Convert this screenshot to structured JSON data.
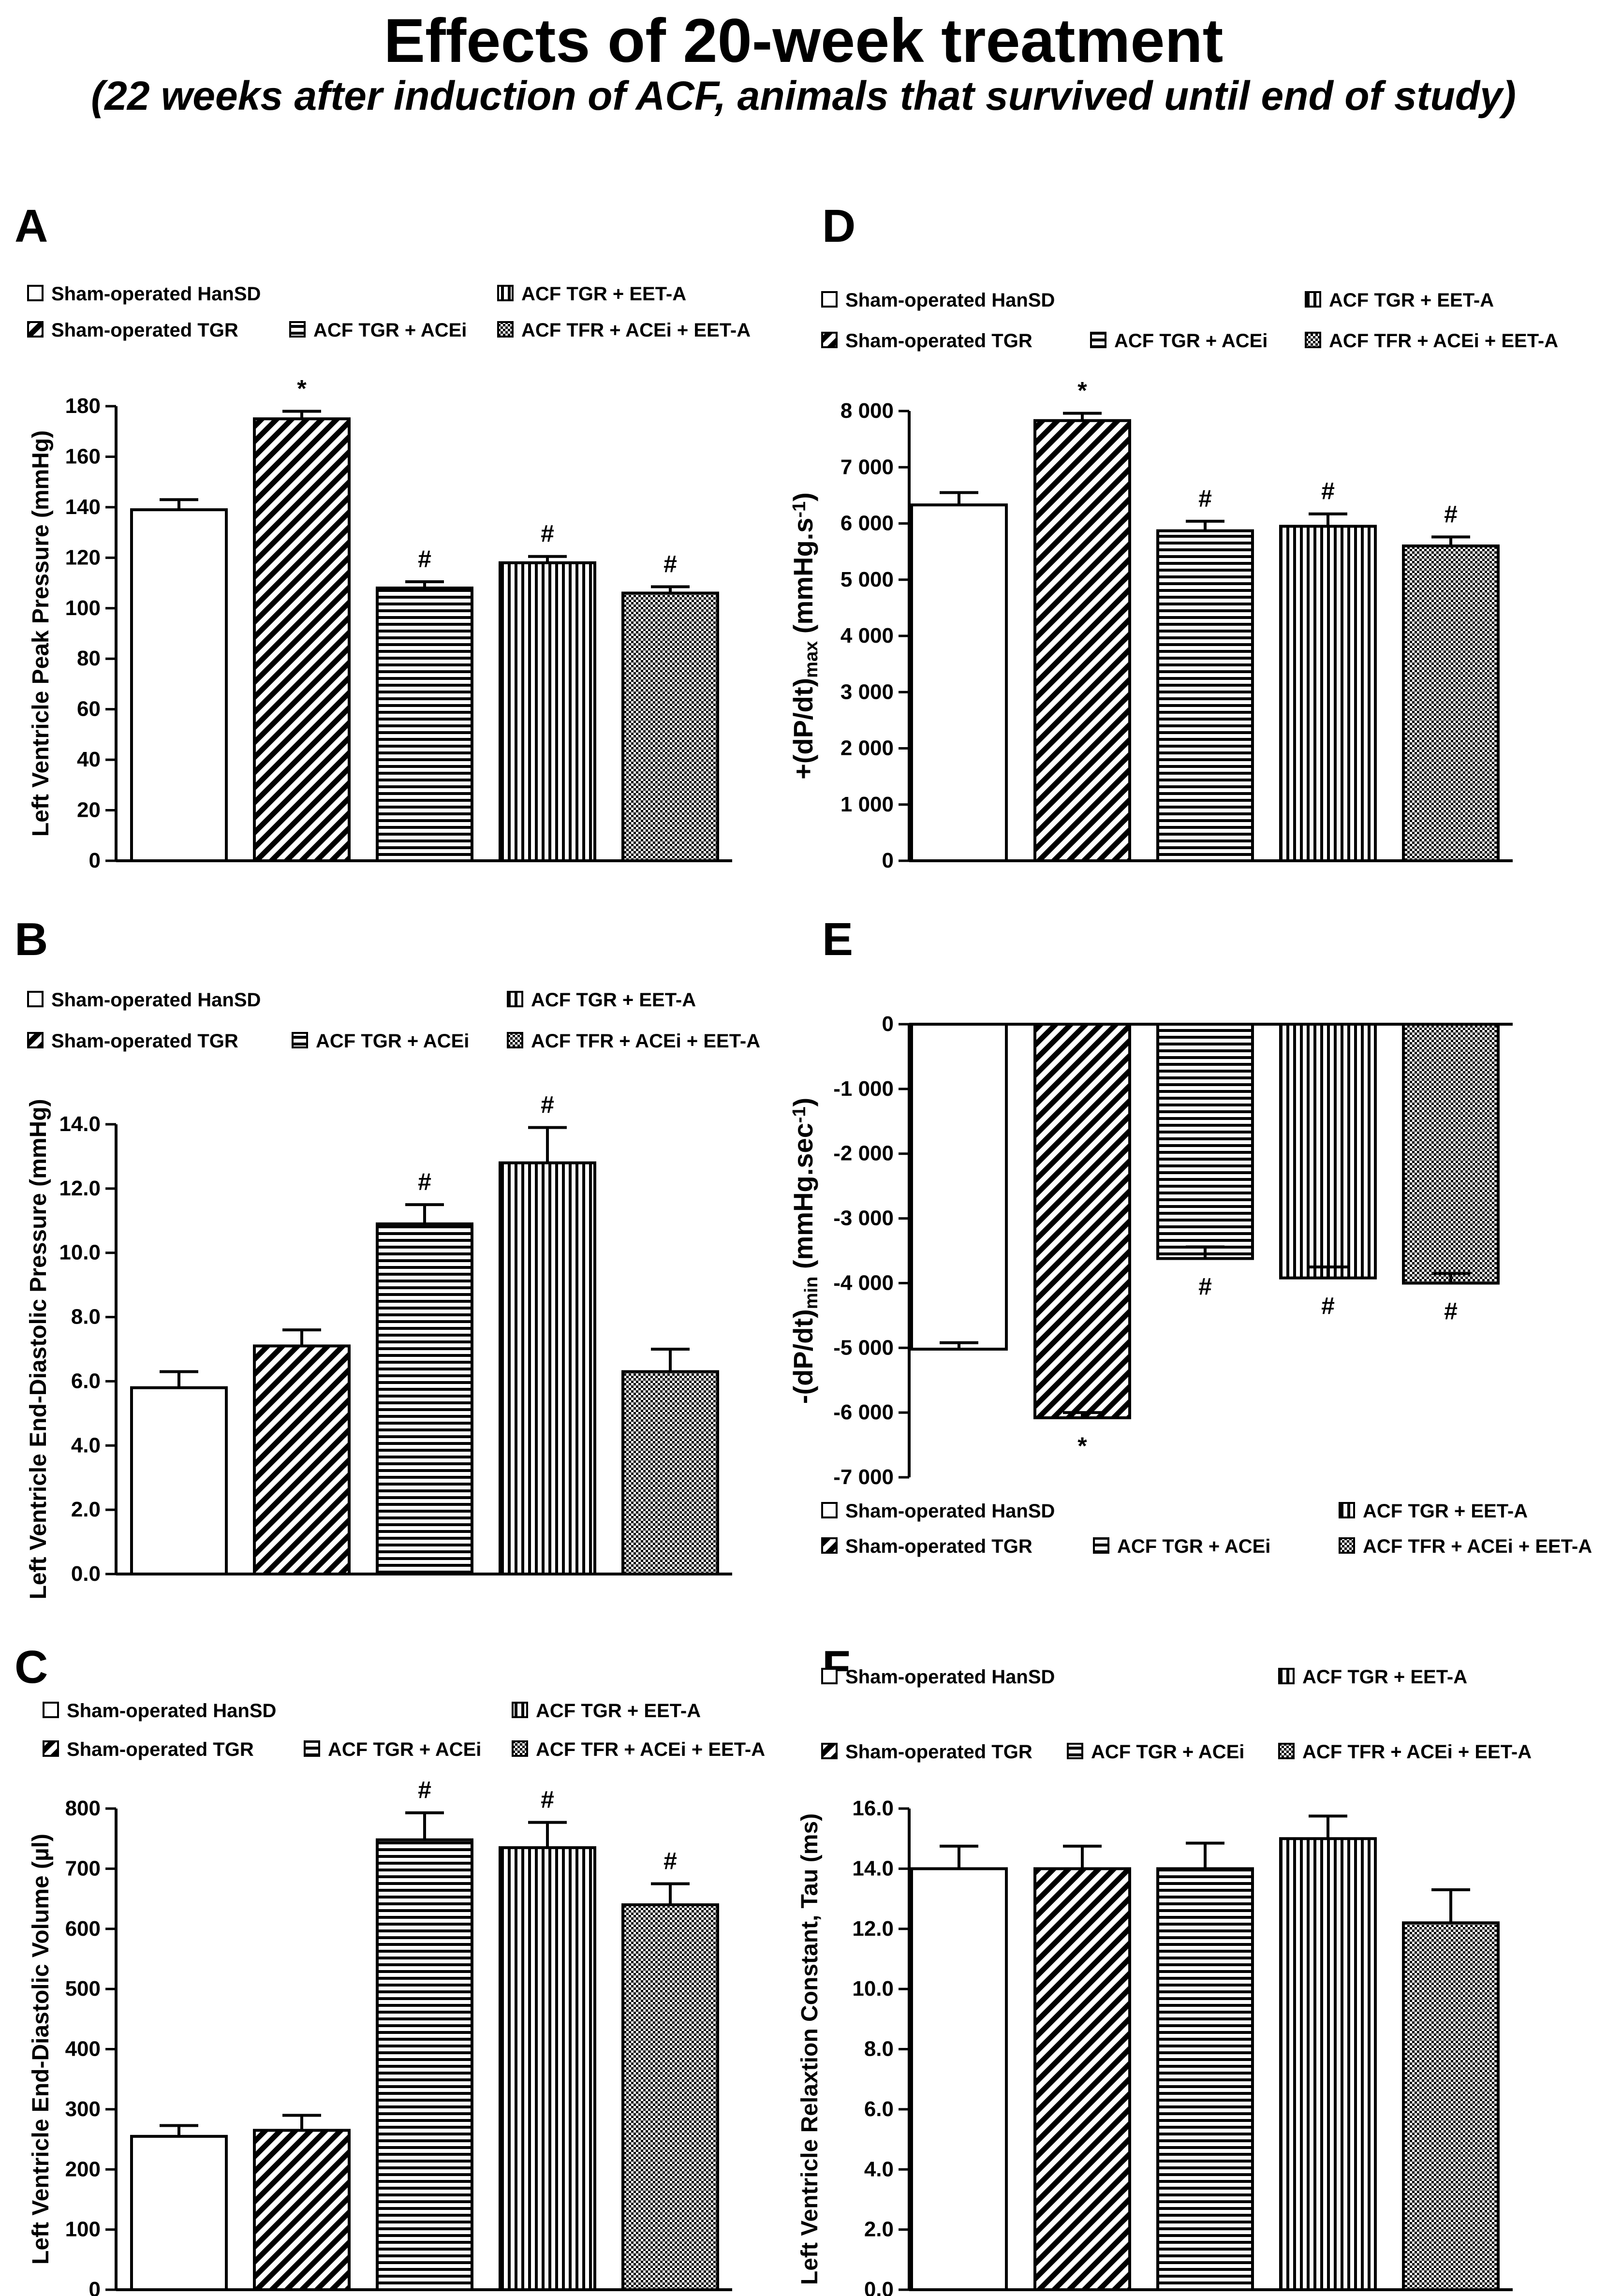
{
  "figure": {
    "title": "Effects of 20-week treatment",
    "subtitle": "(22 weeks after induction of ACF, animals that survived until end of study)"
  },
  "legend_template": {
    "groups": [
      {
        "name": "Sham-operated HanSD",
        "pattern": "white"
      },
      {
        "name": "Sham-operated TGR",
        "pattern": "diagonal"
      },
      {
        "name": "ACF TGR + ACEi",
        "pattern": "horizontal"
      },
      {
        "name": "ACF TGR + EET-A",
        "pattern": "vertical"
      },
      {
        "name": "ACF TFR + ACEi + EET-A",
        "pattern": "checker"
      }
    ]
  },
  "colors": {
    "bar_stroke": "#000000",
    "bar_fill": "#ffffff",
    "ink": "#000000"
  },
  "chart_data": [
    {
      "panel": "A",
      "type": "bar",
      "ylabel": "Left Ventricle Peak Pressure (mmHg)",
      "ylim": [
        0,
        180
      ],
      "yticks": [
        0,
        20,
        40,
        60,
        80,
        100,
        120,
        140,
        160,
        180
      ],
      "ytick_labels": [
        "0",
        "20",
        "40",
        "60",
        "80",
        "100",
        "120",
        "140",
        "160",
        "180"
      ],
      "categories": [
        "Sham-operated HanSD",
        "Sham-operated TGR",
        "ACF TGR + ACEi",
        "ACF TGR + EET-A",
        "ACF TFR + ACEi + EET-A"
      ],
      "values": [
        139,
        175,
        108,
        118,
        106
      ],
      "errors": [
        4,
        3,
        2.5,
        2.5,
        2.5
      ],
      "annotations": [
        "",
        "*",
        "#",
        "#",
        "#"
      ],
      "legend_position": "top"
    },
    {
      "panel": "B",
      "type": "bar",
      "ylabel": "Left Ventricle End-Diastolic Pressure (mmHg)",
      "ylim": [
        0,
        14
      ],
      "yticks": [
        0,
        2,
        4,
        6,
        8,
        10,
        12,
        14
      ],
      "ytick_labels": [
        "0.0",
        "2.0",
        "4.0",
        "6.0",
        "8.0",
        "10.0",
        "12.0",
        "14.0"
      ],
      "categories": [
        "Sham-operated HanSD",
        "Sham-operated TGR",
        "ACF TGR + ACEi",
        "ACF TGR + EET-A",
        "ACF TFR + ACEi + EET-A"
      ],
      "values": [
        5.8,
        7.1,
        10.9,
        12.8,
        6.3
      ],
      "errors": [
        0.5,
        0.5,
        0.6,
        1.1,
        0.7
      ],
      "annotations": [
        "",
        "",
        "#",
        "#",
        ""
      ],
      "legend_position": "top"
    },
    {
      "panel": "C",
      "type": "bar",
      "ylabel": "Left Ventricle End-Diastolic Volume (µl)",
      "ylim": [
        0,
        800
      ],
      "yticks": [
        0,
        100,
        200,
        300,
        400,
        500,
        600,
        700,
        800
      ],
      "ytick_labels": [
        "0",
        "100",
        "200",
        "300",
        "400",
        "500",
        "600",
        "700",
        "800"
      ],
      "categories": [
        "Sham-operated HanSD",
        "Sham-operated TGR",
        "ACF TGR + ACEi",
        "ACF TGR + EET-A",
        "ACF TFR + ACEi + EET-A"
      ],
      "values": [
        255,
        265,
        748,
        735,
        640
      ],
      "errors": [
        18,
        25,
        45,
        42,
        35
      ],
      "annotations": [
        "",
        "",
        "#",
        "#",
        "#"
      ],
      "legend_position": "top"
    },
    {
      "panel": "D",
      "type": "bar",
      "ylabel_main": "+(dP/dt)",
      "ylabel_sub": "max",
      "ylabel_rest": " (mmHg.s",
      "ylabel_sup": "-1",
      "ylabel_end": ")",
      "ylim": [
        0,
        8000
      ],
      "yticks": [
        0,
        1000,
        2000,
        3000,
        4000,
        5000,
        6000,
        7000,
        8000
      ],
      "ytick_labels": [
        "0",
        "1 000",
        "2 000",
        "3 000",
        "4 000",
        "5 000",
        "6 000",
        "7 000",
        "8 000"
      ],
      "categories": [
        "Sham-operated HanSD",
        "Sham-operated TGR",
        "ACF TGR + ACEi",
        "ACF TGR + EET-A",
        "ACF TFR + ACEi + EET-A"
      ],
      "values": [
        6330,
        7830,
        5870,
        5950,
        5600
      ],
      "errors": [
        220,
        130,
        170,
        220,
        160
      ],
      "annotations": [
        "",
        "*",
        "#",
        "#",
        "#"
      ],
      "legend_position": "top"
    },
    {
      "panel": "E",
      "type": "bar",
      "ylabel_main": "-(dP/dt)",
      "ylabel_sub": "min",
      "ylabel_rest": " (mmHg.sec",
      "ylabel_sup": "-1",
      "ylabel_end": ")",
      "ylim": [
        -7000,
        0
      ],
      "yticks": [
        0,
        -1000,
        -2000,
        -3000,
        -4000,
        -5000,
        -6000,
        -7000
      ],
      "ytick_labels": [
        "0",
        "-1 000",
        "-2 000",
        "-3 000",
        "-4 000",
        "-5 000",
        "-6 000",
        "-7 000"
      ],
      "categories": [
        "Sham-operated HanSD",
        "Sham-operated TGR",
        "ACF TGR + ACEi",
        "ACF TGR + EET-A",
        "ACF TFR + ACEi + EET-A"
      ],
      "values": [
        -5020,
        -6080,
        -3620,
        -3920,
        -4000
      ],
      "errors": [
        100,
        80,
        180,
        170,
        150
      ],
      "annotations": [
        "",
        "*",
        "#",
        "#",
        "#"
      ],
      "legend_position": "bottom"
    },
    {
      "panel": "F",
      "type": "bar",
      "ylabel": "Left Ventricle Relaxtion Constant, Tau (ms)",
      "ylim": [
        0,
        16
      ],
      "yticks": [
        0,
        2,
        4,
        6,
        8,
        10,
        12,
        14,
        16
      ],
      "ytick_labels": [
        "0.0",
        "2.0",
        "4.0",
        "6.0",
        "8.0",
        "10.0",
        "12.0",
        "14.0",
        "16.0"
      ],
      "categories": [
        "Sham-operated HanSD",
        "Sham-operated TGR",
        "ACF TGR + ACEi",
        "ACF TGR + EET-A",
        "ACF TFR + ACEi + EET-A"
      ],
      "values": [
        14.0,
        14.0,
        14.0,
        15.0,
        12.2
      ],
      "errors": [
        0.75,
        0.75,
        0.85,
        0.75,
        1.1
      ],
      "annotations": [
        "",
        "",
        "",
        "",
        ""
      ],
      "legend_position": "top"
    }
  ]
}
